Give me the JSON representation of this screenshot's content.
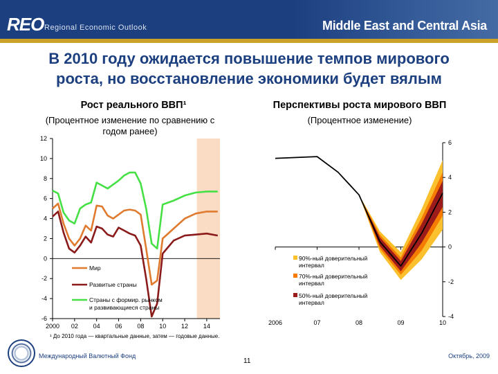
{
  "header": {
    "logo": "REO",
    "logo_sub": "Regional Economic Outlook",
    "region": "Middle East and Central Asia"
  },
  "slide": {
    "title_line1": "В 2010 году ожидается повышение темпов мирового",
    "title_line2": "роста, но восстановление экономики будет вялым"
  },
  "colors": {
    "header_bg": "#1c3f7f",
    "world": "#e07a2e",
    "advanced": "#8b1a1a",
    "emerging": "#44e044",
    "shade": "#fadcc4",
    "band90": "#fbc02d",
    "band70": "#f57c00",
    "band50": "#9c1b1b"
  },
  "chart_data": [
    {
      "type": "line",
      "title": "Рост реального ВВП¹",
      "subtitle_line1": "(Процентное изменение по сравнению с",
      "subtitle_line2": "годом ранее)",
      "x_tick_labels": [
        "2000",
        "02",
        "04",
        "06",
        "08",
        "10",
        "12",
        "14"
      ],
      "x_tick_values": [
        2000,
        2002,
        2004,
        2006,
        2008,
        2010,
        2012,
        2014
      ],
      "xlim": [
        2000,
        2015.2
      ],
      "ylim": [
        -6,
        12
      ],
      "y_ticks": [
        -6,
        -4,
        -2,
        0,
        2,
        4,
        6,
        8,
        10,
        12
      ],
      "shaded_region": [
        2013.1,
        2015.2
      ],
      "series": [
        {
          "name": "Мир",
          "x": [
            2000,
            2000.5,
            2001,
            2001.5,
            2002,
            2002.5,
            2003,
            2003.5,
            2004,
            2004.5,
            2005,
            2005.5,
            2006,
            2006.5,
            2007,
            2007.5,
            2008,
            2008.5,
            2009,
            2009.5,
            2010,
            2011,
            2012,
            2013,
            2014,
            2015
          ],
          "y": [
            5.0,
            5.5,
            3.5,
            2.0,
            1.3,
            2.0,
            3.3,
            2.8,
            5.3,
            5.2,
            4.3,
            4.0,
            4.4,
            4.8,
            4.9,
            4.8,
            4.4,
            1.0,
            -2.6,
            -2.2,
            2.0,
            3.0,
            4.0,
            4.5,
            4.7,
            4.7
          ]
        },
        {
          "name": "Развитые страны",
          "x": [
            2000,
            2000.5,
            2001,
            2001.5,
            2002,
            2002.5,
            2003,
            2003.5,
            2004,
            2004.5,
            2005,
            2005.5,
            2006,
            2006.5,
            2007,
            2007.5,
            2008,
            2008.5,
            2009,
            2009.5,
            2010,
            2011,
            2012,
            2013,
            2014,
            2015
          ],
          "y": [
            4.2,
            4.7,
            2.6,
            1.0,
            0.6,
            1.3,
            2.2,
            1.6,
            3.2,
            3.0,
            2.4,
            2.2,
            3.1,
            2.8,
            2.5,
            2.3,
            1.3,
            -2.0,
            -5.8,
            -4.5,
            0.5,
            1.8,
            2.3,
            2.4,
            2.5,
            2.3
          ]
        },
        {
          "name": "Страны с формир. рынком и развивающиеся страны",
          "x": [
            2000,
            2000.5,
            2001,
            2001.5,
            2002,
            2002.5,
            2003,
            2003.5,
            2004,
            2004.5,
            2005,
            2005.5,
            2006,
            2006.5,
            2007,
            2007.5,
            2008,
            2008.5,
            2009,
            2009.5,
            2010,
            2011,
            2012,
            2013,
            2014,
            2015
          ],
          "y": [
            6.8,
            6.5,
            4.6,
            3.8,
            3.5,
            5.0,
            5.4,
            5.6,
            7.6,
            7.3,
            7.0,
            7.4,
            7.8,
            8.3,
            8.6,
            8.6,
            7.5,
            5.0,
            1.5,
            1.0,
            5.4,
            5.8,
            6.3,
            6.6,
            6.7,
            6.7
          ]
        }
      ]
    },
    {
      "type": "area",
      "title": "Перспективы роста мирового ВВП",
      "subtitle": "(Процентное изменение)",
      "x_tick_labels": [
        "2006",
        "07",
        "08",
        "09",
        "10"
      ],
      "x_tick_values": [
        2006,
        2007,
        2008,
        2009,
        2010
      ],
      "xlim": [
        2006,
        2010
      ],
      "ylim": [
        -4,
        6
      ],
      "y_ticks": [
        -4,
        -2,
        0,
        2,
        4,
        6
      ],
      "central": {
        "x": [
          2006,
          2007,
          2007.5,
          2008,
          2008.5,
          2009,
          2009.5,
          2010
        ],
        "y": [
          5.1,
          5.2,
          4.3,
          3.0,
          0.3,
          -1.1,
          0.8,
          3.1
        ]
      },
      "bands": [
        {
          "name": "90%-ный доверительный интервал",
          "x": [
            2008,
            2008.5,
            2009,
            2009.5,
            2010
          ],
          "upper": [
            3.0,
            0.9,
            -0.3,
            2.2,
            5.0
          ],
          "lower": [
            3.0,
            -0.3,
            -1.9,
            -0.7,
            1.0
          ]
        },
        {
          "name": "70%-ный доверительный интервал",
          "x": [
            2008,
            2008.5,
            2009,
            2009.5,
            2010
          ],
          "upper": [
            3.0,
            0.7,
            -0.6,
            1.7,
            4.3
          ],
          "lower": [
            3.0,
            -0.1,
            -1.6,
            -0.2,
            1.8
          ]
        },
        {
          "name": "50%-ный доверительный интервал",
          "x": [
            2008,
            2008.5,
            2009,
            2009.5,
            2010
          ],
          "upper": [
            3.0,
            0.55,
            -0.8,
            1.35,
            3.8
          ],
          "lower": [
            3.0,
            0.05,
            -1.4,
            0.25,
            2.3
          ]
        }
      ]
    }
  ],
  "footer": {
    "footnote": "¹ До 2010 года — квартальные данные, затем — годовые данные.",
    "org": "Международный Валютный Фонд",
    "page": "11",
    "date": "Октябрь, 2009"
  }
}
